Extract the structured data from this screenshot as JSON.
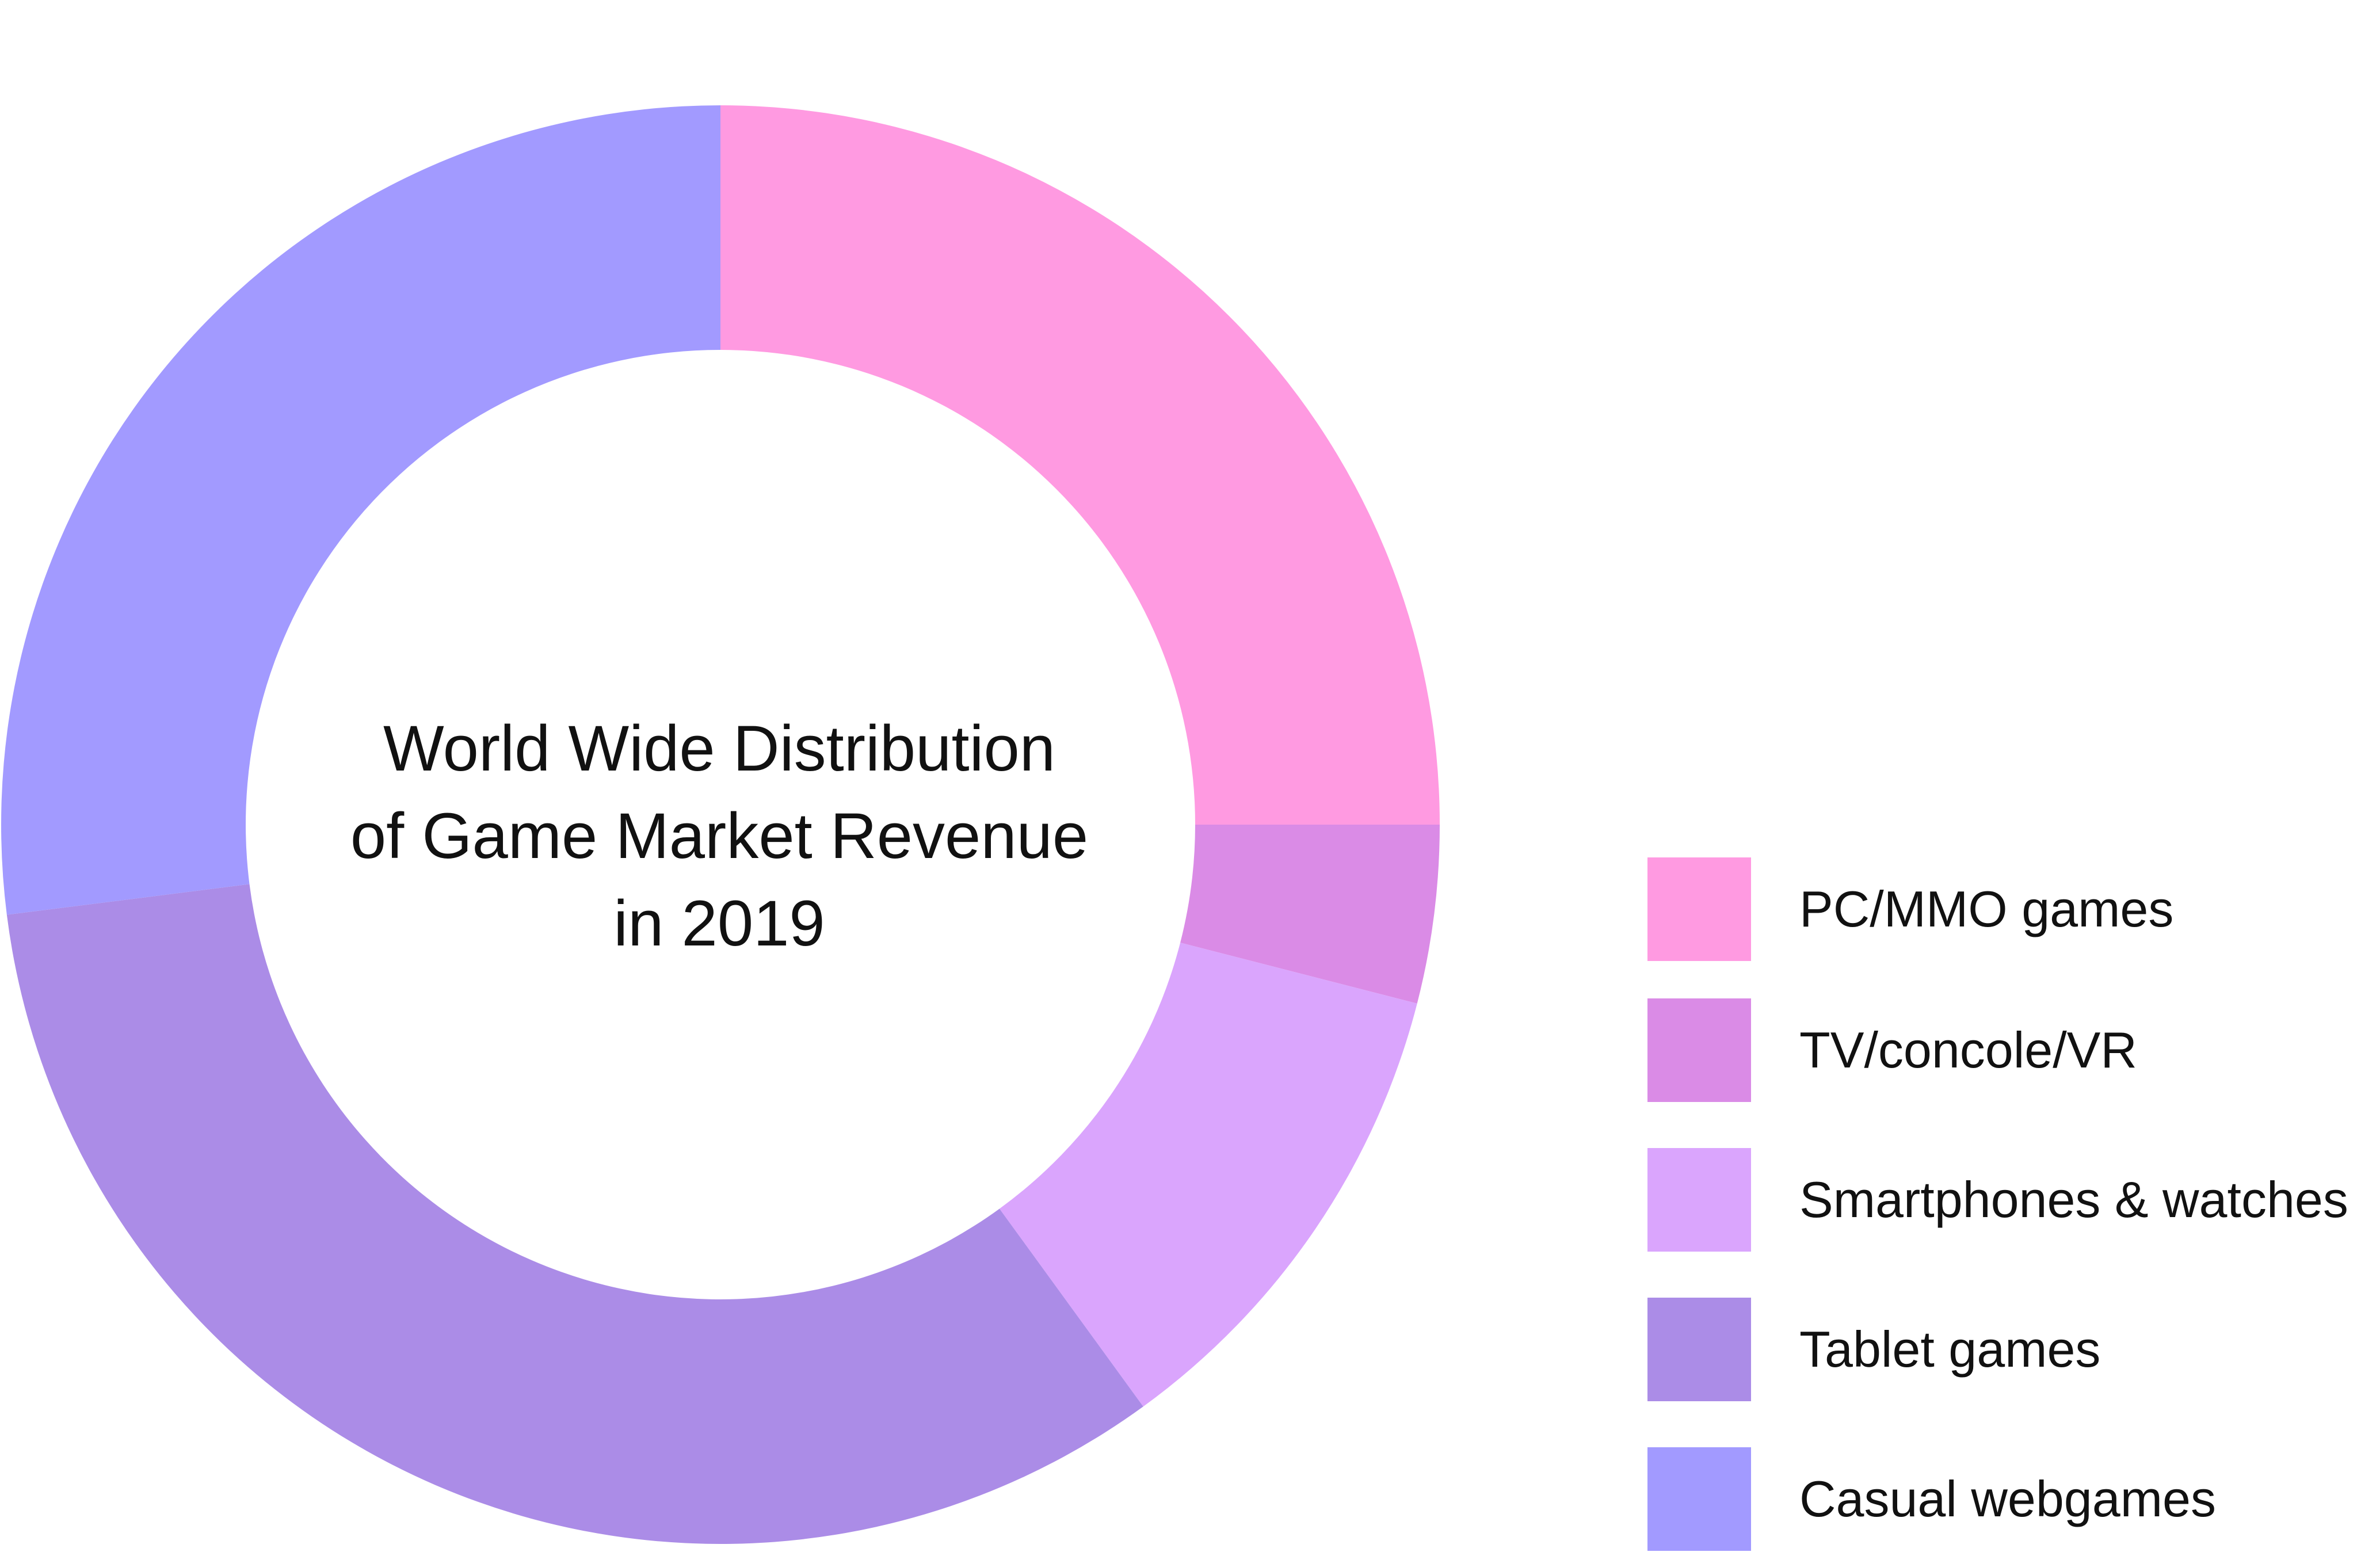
{
  "chart_data": {
    "type": "pie",
    "donut": true,
    "title_lines": [
      "World Wide Distribution",
      "of Game Market Revenue",
      "in 2019"
    ],
    "categories": [
      "PC/MMO games",
      "TV/concole/VR",
      "Smartphones & watches",
      "Tablet games",
      "Casual webgames"
    ],
    "values": [
      25,
      4,
      11,
      33,
      27
    ],
    "colors": [
      "#ff9ae1",
      "#da8be6",
      "#daa5fd",
      "#ab8ce7",
      "#a29aff"
    ],
    "legend_position": "bottom-right"
  }
}
